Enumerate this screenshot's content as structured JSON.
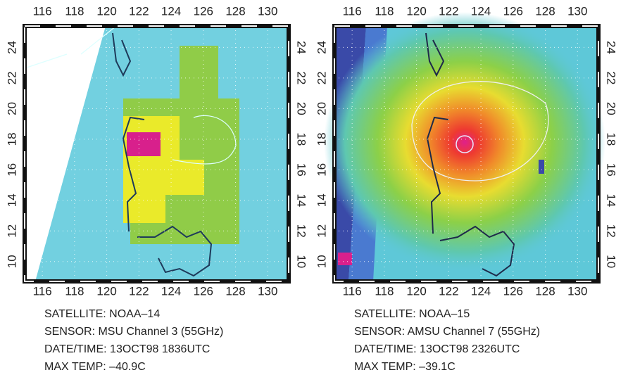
{
  "panels": [
    {
      "lon_ticks": [
        116,
        118,
        120,
        122,
        124,
        126,
        128,
        130
      ],
      "lat_ticks": [
        10,
        12,
        14,
        16,
        18,
        20,
        22,
        24
      ],
      "caption": [
        "SATELLITE: NOAA–14",
        "SENSOR: MSU Channel 3 (55GHz)",
        "DATE/TIME: 13OCT98 1836UTC",
        "MAX TEMP: –40.9C"
      ]
    },
    {
      "lon_ticks": [
        116,
        118,
        120,
        122,
        124,
        126,
        128,
        130
      ],
      "lat_ticks": [
        10,
        12,
        14,
        16,
        18,
        20,
        22,
        24
      ],
      "caption": [
        "SATELLITE: NOAA–15",
        "SENSOR: AMSU Channel 7 (55GHz)",
        "DATE/TIME: 13OCT98 2326UTC",
        "MAX TEMP: –39.1C"
      ]
    }
  ]
}
